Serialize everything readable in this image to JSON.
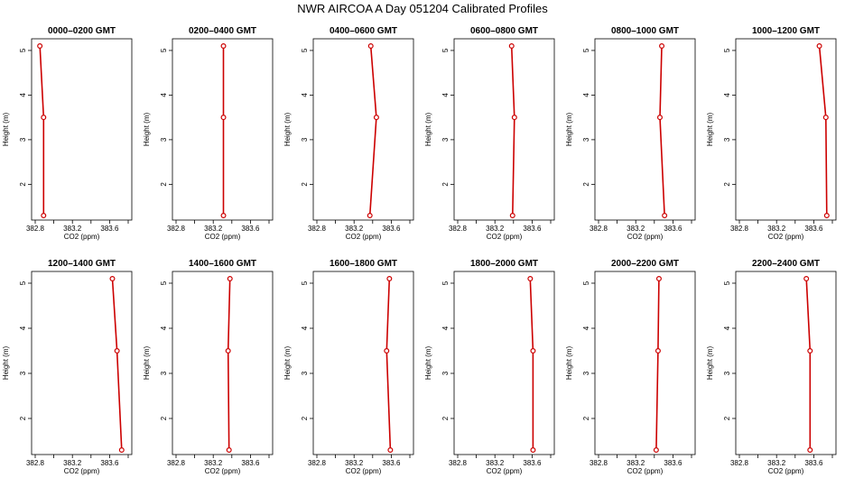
{
  "figure": {
    "title": "NWR AIRCOA A  Day 051204  Calibrated Profiles"
  },
  "colors": {
    "series": "#cc0000",
    "axes": "#000000"
  },
  "chart_data": [
    {
      "type": "line",
      "title": "0000–0200 GMT",
      "xlabel": "CO2 (ppm)",
      "ylabel": "Height (m)",
      "xlim": [
        382.8,
        383.8
      ],
      "ylim": [
        1.3,
        5.1
      ],
      "xticks": [
        "382.8",
        "383.2",
        "383.6"
      ],
      "yticks": [
        "2",
        "3",
        "4",
        "5"
      ],
      "series": [
        {
          "x": [
            382.85,
            382.89,
            382.89
          ],
          "y": [
            5.1,
            3.5,
            1.3
          ]
        }
      ]
    },
    {
      "type": "line",
      "title": "0200–0400 GMT",
      "xlabel": "CO2 (ppm)",
      "ylabel": "Height (m)",
      "xlim": [
        382.8,
        383.8
      ],
      "ylim": [
        1.3,
        5.1
      ],
      "xticks": [
        "382.8",
        "383.2",
        "383.6"
      ],
      "yticks": [
        "2",
        "3",
        "4",
        "5"
      ],
      "series": [
        {
          "x": [
            383.31,
            383.31,
            383.31
          ],
          "y": [
            5.1,
            3.5,
            1.3
          ]
        }
      ]
    },
    {
      "type": "line",
      "title": "0400–0600 GMT",
      "xlabel": "CO2 (ppm)",
      "ylabel": "Height (m)",
      "xlim": [
        382.8,
        383.8
      ],
      "ylim": [
        1.3,
        5.1
      ],
      "xticks": [
        "382.8",
        "383.2",
        "383.6"
      ],
      "yticks": [
        "2",
        "3",
        "4",
        "5"
      ],
      "series": [
        {
          "x": [
            383.38,
            383.44,
            383.37
          ],
          "y": [
            5.1,
            3.5,
            1.3
          ]
        }
      ]
    },
    {
      "type": "line",
      "title": "0600–0800 GMT",
      "xlabel": "CO2 (ppm)",
      "ylabel": "Height (m)",
      "xlim": [
        382.8,
        383.8
      ],
      "ylim": [
        1.3,
        5.1
      ],
      "xticks": [
        "382.8",
        "383.2",
        "383.6"
      ],
      "yticks": [
        "2",
        "3",
        "4",
        "5"
      ],
      "series": [
        {
          "x": [
            383.38,
            383.41,
            383.39
          ],
          "y": [
            5.1,
            3.5,
            1.3
          ]
        }
      ]
    },
    {
      "type": "line",
      "title": "0800–1000 GMT",
      "xlabel": "CO2 (ppm)",
      "ylabel": "Height (m)",
      "xlim": [
        382.8,
        383.8
      ],
      "ylim": [
        1.3,
        5.1
      ],
      "xticks": [
        "382.8",
        "383.2",
        "383.6"
      ],
      "yticks": [
        "2",
        "3",
        "4",
        "5"
      ],
      "series": [
        {
          "x": [
            383.48,
            383.46,
            383.51
          ],
          "y": [
            5.1,
            3.5,
            1.3
          ]
        }
      ]
    },
    {
      "type": "line",
      "title": "1000–1200 GMT",
      "xlabel": "CO2 (ppm)",
      "ylabel": "Height (m)",
      "xlim": [
        382.8,
        383.8
      ],
      "ylim": [
        1.3,
        5.1
      ],
      "xticks": [
        "382.8",
        "383.2",
        "383.6"
      ],
      "yticks": [
        "2",
        "3",
        "4",
        "5"
      ],
      "series": [
        {
          "x": [
            383.66,
            383.73,
            383.74
          ],
          "y": [
            5.1,
            3.5,
            1.3
          ]
        }
      ]
    },
    {
      "type": "line",
      "title": "1200–1400 GMT",
      "xlabel": "CO2 (ppm)",
      "ylabel": "Height (m)",
      "xlim": [
        382.8,
        383.8
      ],
      "ylim": [
        1.3,
        5.1
      ],
      "xticks": [
        "382.8",
        "383.2",
        "383.6"
      ],
      "yticks": [
        "2",
        "3",
        "4",
        "5"
      ],
      "series": [
        {
          "x": [
            383.63,
            383.68,
            383.73
          ],
          "y": [
            5.1,
            3.5,
            1.3
          ]
        }
      ]
    },
    {
      "type": "line",
      "title": "1400–1600 GMT",
      "xlabel": "CO2 (ppm)",
      "ylabel": "Height (m)",
      "xlim": [
        382.8,
        383.8
      ],
      "ylim": [
        1.3,
        5.1
      ],
      "xticks": [
        "382.8",
        "383.2",
        "383.6"
      ],
      "yticks": [
        "2",
        "3",
        "4",
        "5"
      ],
      "series": [
        {
          "x": [
            383.38,
            383.36,
            383.37
          ],
          "y": [
            5.1,
            3.5,
            1.3
          ]
        }
      ]
    },
    {
      "type": "line",
      "title": "1600–1800 GMT",
      "xlabel": "CO2 (ppm)",
      "ylabel": "Height (m)",
      "xlim": [
        382.8,
        383.8
      ],
      "ylim": [
        1.3,
        5.1
      ],
      "xticks": [
        "382.8",
        "383.2",
        "383.6"
      ],
      "yticks": [
        "2",
        "3",
        "4",
        "5"
      ],
      "series": [
        {
          "x": [
            383.58,
            383.55,
            383.59
          ],
          "y": [
            5.1,
            3.5,
            1.3
          ]
        }
      ]
    },
    {
      "type": "line",
      "title": "1800–2000 GMT",
      "xlabel": "CO2 (ppm)",
      "ylabel": "Height (m)",
      "xlim": [
        382.8,
        383.8
      ],
      "ylim": [
        1.3,
        5.1
      ],
      "xticks": [
        "382.8",
        "383.2",
        "383.6"
      ],
      "yticks": [
        "2",
        "3",
        "4",
        "5"
      ],
      "series": [
        {
          "x": [
            383.58,
            383.61,
            383.61
          ],
          "y": [
            5.1,
            3.5,
            1.3
          ]
        }
      ]
    },
    {
      "type": "line",
      "title": "2000–2200 GMT",
      "xlabel": "CO2 (ppm)",
      "ylabel": "Height (m)",
      "xlim": [
        382.8,
        383.8
      ],
      "ylim": [
        1.3,
        5.1
      ],
      "xticks": [
        "382.8",
        "383.2",
        "383.6"
      ],
      "yticks": [
        "2",
        "3",
        "4",
        "5"
      ],
      "series": [
        {
          "x": [
            383.45,
            383.44,
            383.42
          ],
          "y": [
            5.1,
            3.5,
            1.3
          ]
        }
      ]
    },
    {
      "type": "line",
      "title": "2200–2400 GMT",
      "xlabel": "CO2 (ppm)",
      "ylabel": "Height (m)",
      "xlim": [
        382.8,
        383.8
      ],
      "ylim": [
        1.3,
        5.1
      ],
      "xticks": [
        "382.8",
        "383.2",
        "383.6"
      ],
      "yticks": [
        "2",
        "3",
        "4",
        "5"
      ],
      "series": [
        {
          "x": [
            383.52,
            383.56,
            383.56
          ],
          "y": [
            5.1,
            3.5,
            1.3
          ]
        }
      ]
    }
  ]
}
